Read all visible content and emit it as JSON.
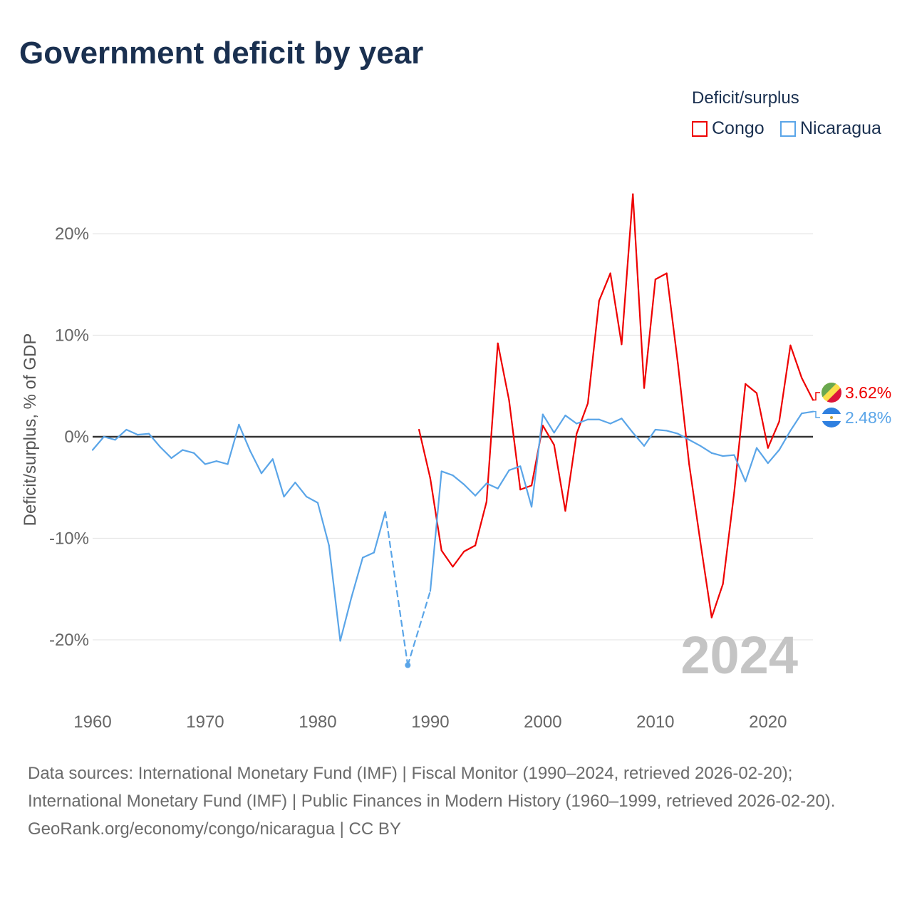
{
  "chart_data": {
    "type": "line",
    "title": "Government deficit by year",
    "ylabel": "Deficit/surplus, % of GDP",
    "xlabel": "",
    "xlim": [
      1960,
      2024
    ],
    "ylim": [
      -26,
      26
    ],
    "x_ticks": [
      1960,
      1970,
      1980,
      1990,
      2000,
      2010,
      2020
    ],
    "x_tick_labels": [
      "1960",
      "1970",
      "1980",
      "1990",
      "2000",
      "2010",
      "2020"
    ],
    "y_ticks": [
      -20,
      -10,
      0,
      10,
      20
    ],
    "y_tick_labels": [
      "-20%",
      "-10%",
      "0%",
      "10%",
      "20%"
    ],
    "grid": true,
    "legend_title": "Deficit/surplus",
    "legend_position": "top-right",
    "year_watermark": "2024",
    "series": [
      {
        "name": "Congo",
        "color": "#ee0000",
        "end_label": "3.62%",
        "x": [
          1989,
          1990,
          1991,
          1992,
          1993,
          1994,
          1995,
          1996,
          1997,
          1998,
          1999,
          2000,
          2001,
          2002,
          2003,
          2004,
          2005,
          2006,
          2007,
          2008,
          2009,
          2010,
          2011,
          2012,
          2013,
          2014,
          2015,
          2016,
          2017,
          2018,
          2019,
          2020,
          2021,
          2022,
          2023,
          2024
        ],
        "values": [
          0.7,
          -4.1,
          -11.2,
          -12.8,
          -11.3,
          -10.7,
          -6.4,
          9.2,
          3.6,
          -5.2,
          -4.8,
          1.1,
          -0.8,
          -7.3,
          0.3,
          3.3,
          13.4,
          16.1,
          9.1,
          23.9,
          4.8,
          15.5,
          16.1,
          7.2,
          -2.7,
          -10.4,
          -17.8,
          -14.5,
          -5.5,
          5.2,
          4.3,
          -1.1,
          1.5,
          9.0,
          5.8,
          3.62
        ]
      },
      {
        "name": "Nicaragua",
        "color": "#5aa5e8",
        "end_label": "2.48%",
        "x": [
          1960,
          1961,
          1962,
          1963,
          1964,
          1965,
          1966,
          1967,
          1968,
          1969,
          1970,
          1971,
          1972,
          1973,
          1974,
          1975,
          1976,
          1977,
          1978,
          1979,
          1980,
          1981,
          1982,
          1983,
          1984,
          1985,
          1986,
          1988,
          1990,
          1991,
          1992,
          1993,
          1994,
          1995,
          1996,
          1997,
          1998,
          1999,
          2000,
          2001,
          2002,
          2003,
          2004,
          2005,
          2006,
          2007,
          2008,
          2009,
          2010,
          2011,
          2012,
          2013,
          2014,
          2015,
          2016,
          2017,
          2018,
          2019,
          2020,
          2021,
          2022,
          2023,
          2024
        ],
        "values": [
          -1.3,
          0,
          -0.3,
          0.7,
          0.2,
          0.3,
          -1.0,
          -2.1,
          -1.3,
          -1.6,
          -2.7,
          -2.4,
          -2.7,
          1.2,
          -1.4,
          -3.6,
          -2.2,
          -5.9,
          -4.5,
          -5.9,
          -6.5,
          -10.7,
          -20.1,
          -15.8,
          -11.9,
          -11.4,
          -7.4,
          -22.5,
          -15.2,
          -3.4,
          -3.8,
          -4.7,
          -5.8,
          -4.6,
          -5.1,
          -3.3,
          -2.9,
          -6.9,
          2.2,
          0.4,
          2.1,
          1.3,
          1.7,
          1.7,
          1.3,
          1.8,
          0.4,
          -0.9,
          0.7,
          0.6,
          0.3,
          -0.3,
          -0.9,
          -1.6,
          -1.9,
          -1.8,
          -4.4,
          -1.1,
          -2.6,
          -1.3,
          0.6,
          2.3,
          2.48
        ]
      }
    ]
  },
  "footer": {
    "sources": "Data sources: International Monetary Fund (IMF) | Fiscal Monitor (1990–2024, retrieved 2026-02-20); International Monetary Fund (IMF) | Public Finances in Modern History (1960–1999, retrieved 2026-02-20).",
    "attribution": "GeoRank.org/economy/congo/nicaragua | CC BY"
  }
}
